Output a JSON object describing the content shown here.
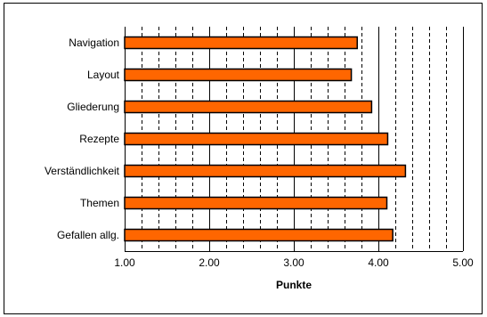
{
  "chart_data": {
    "type": "bar",
    "orientation": "horizontal",
    "categories": [
      "Navigation",
      "Layout",
      "Gliederung",
      "Rezepte",
      "Verständlichkeit",
      "Themen",
      "Gefallen allg."
    ],
    "values": [
      3.75,
      3.68,
      3.92,
      4.11,
      4.32,
      4.1,
      4.17
    ],
    "xlabel": "Punkte",
    "ylabel": "",
    "title": "",
    "xlim": [
      1,
      5
    ],
    "xticks": [
      "1.00",
      "2.00",
      "3.00",
      "4.00",
      "5.00"
    ],
    "grid": "dashed vertical minor gridlines, solid major gridlines",
    "legend": "none",
    "colors": {
      "bar_fill": "#ff6600",
      "bar_stroke": "#000000",
      "grid": "#000000"
    }
  }
}
